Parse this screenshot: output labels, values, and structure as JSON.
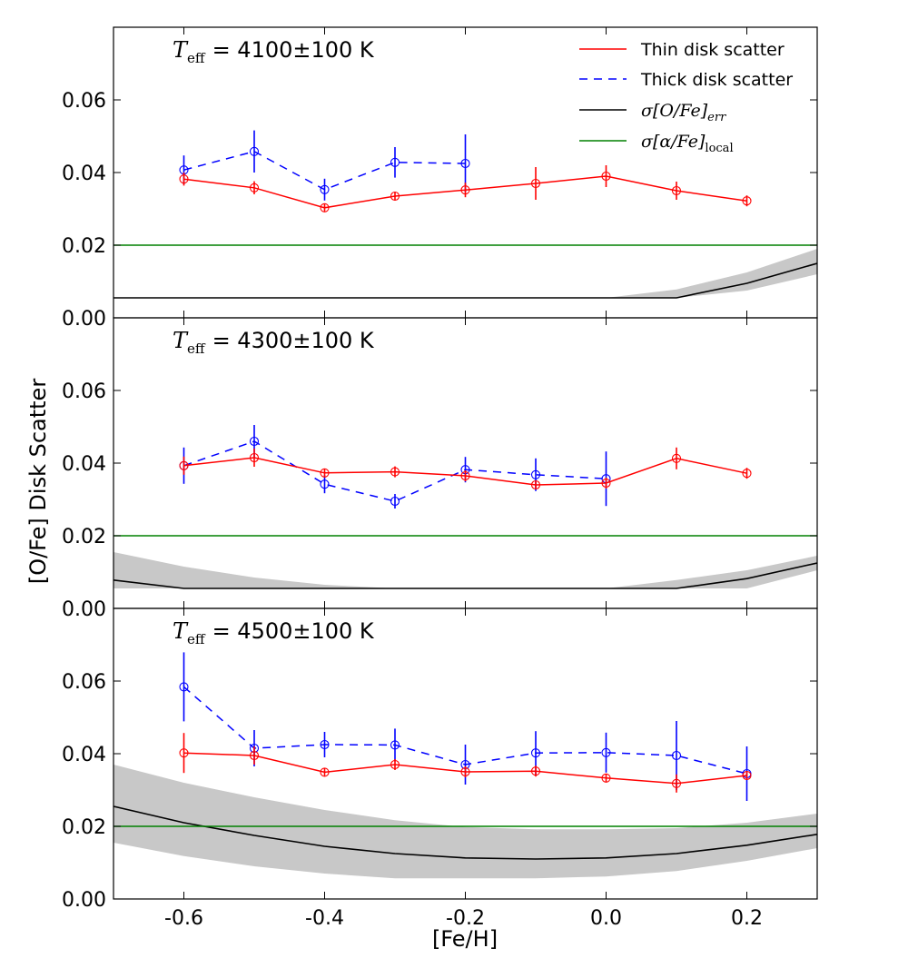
{
  "chart_data": {
    "type": "line",
    "xlabel": "[Fe/H]",
    "ylabel": "[O/Fe] Disk Scatter",
    "xlim": [
      -0.7,
      0.3
    ],
    "ylim": [
      0.0,
      0.08
    ],
    "x_ticks": [
      "-0.6",
      "-0.4",
      "-0.2",
      "0.0",
      "0.2"
    ],
    "y_ticks": [
      "0.00",
      "0.02",
      "0.04",
      "0.06"
    ],
    "legend": {
      "placement": "top-right",
      "entries": [
        {
          "key": "thin",
          "label": "Thin disk scatter",
          "style": "solid",
          "color": "#ff0000"
        },
        {
          "key": "thick",
          "label": "Thick disk scatter",
          "style": "dashed",
          "color": "#0000ff"
        },
        {
          "key": "err",
          "label": "σ[O/Fe]",
          "sub": "err",
          "style": "solid",
          "color": "#000000"
        },
        {
          "key": "local",
          "label": "σ[α/Fe]",
          "sub": "local",
          "style": "solid",
          "color": "#008000"
        }
      ]
    },
    "colors": {
      "thin": "#ff0000",
      "thick": "#0000ff",
      "err": "#000000",
      "local": "#008000",
      "band": "#c8c8c8"
    },
    "panels": [
      {
        "title_prefix": "T",
        "title_sub": "eff",
        "title_value": "= 4100±100 K",
        "thin": {
          "x": [
            -0.6,
            -0.5,
            -0.4,
            -0.3,
            -0.2,
            -0.1,
            0.0,
            0.1,
            0.2
          ],
          "y": [
            0.0382,
            0.0358,
            0.0303,
            0.0335,
            0.0352,
            0.037,
            0.039,
            0.035,
            0.0322
          ],
          "err": [
            0.0018,
            0.0018,
            0.001,
            0.0012,
            0.002,
            0.0045,
            0.003,
            0.0025,
            0.0015
          ]
        },
        "thick": {
          "x": [
            -0.6,
            -0.5,
            -0.4,
            -0.3,
            -0.2
          ],
          "y": [
            0.0407,
            0.0458,
            0.0353,
            0.0428,
            0.0425
          ],
          "err": [
            0.004,
            0.0058,
            0.003,
            0.0042,
            0.008
          ]
        },
        "err_curve": {
          "x": [
            -0.7,
            -0.6,
            -0.5,
            -0.4,
            -0.3,
            -0.2,
            -0.1,
            0.0,
            0.1,
            0.2,
            0.3
          ],
          "y": [
            0.0055,
            0.0055,
            0.0055,
            0.0055,
            0.0055,
            0.0055,
            0.0055,
            0.0055,
            0.0055,
            0.0095,
            0.015
          ],
          "lo": [
            0.0055,
            0.0055,
            0.0055,
            0.0055,
            0.0055,
            0.0055,
            0.0055,
            0.0055,
            0.0055,
            0.0075,
            0.012
          ],
          "hi": [
            0.0055,
            0.0055,
            0.0055,
            0.0055,
            0.0055,
            0.0055,
            0.0055,
            0.0055,
            0.0078,
            0.0125,
            0.019
          ]
        },
        "local_level": 0.02
      },
      {
        "title_prefix": "T",
        "title_sub": "eff",
        "title_value": "= 4300±100 K",
        "thin": {
          "x": [
            -0.6,
            -0.5,
            -0.4,
            -0.3,
            -0.2,
            -0.1,
            0.0,
            0.1,
            0.2
          ],
          "y": [
            0.0393,
            0.0415,
            0.0373,
            0.0376,
            0.0365,
            0.034,
            0.0345,
            0.0413,
            0.0372
          ],
          "err": [
            0.0025,
            0.0025,
            0.0012,
            0.0015,
            0.0015,
            0.0012,
            0.0015,
            0.003,
            0.0015
          ]
        },
        "thick": {
          "x": [
            -0.6,
            -0.5,
            -0.4,
            -0.3,
            -0.2,
            -0.1,
            0.0
          ],
          "y": [
            0.0393,
            0.046,
            0.0342,
            0.0295,
            0.0382,
            0.0368,
            0.0357
          ],
          "err": [
            0.005,
            0.0045,
            0.0025,
            0.002,
            0.0035,
            0.0045,
            0.0075
          ]
        },
        "err_curve": {
          "x": [
            -0.7,
            -0.6,
            -0.5,
            -0.4,
            -0.3,
            -0.2,
            -0.1,
            0.0,
            0.1,
            0.2,
            0.3
          ],
          "y": [
            0.0078,
            0.0055,
            0.0055,
            0.0055,
            0.0055,
            0.0055,
            0.0055,
            0.0055,
            0.0055,
            0.0082,
            0.0125
          ],
          "lo": [
            0.0055,
            0.0055,
            0.0055,
            0.0055,
            0.0055,
            0.0055,
            0.0055,
            0.0055,
            0.0055,
            0.0055,
            0.0105
          ],
          "hi": [
            0.0155,
            0.0115,
            0.0085,
            0.0065,
            0.0055,
            0.0055,
            0.0055,
            0.0055,
            0.0078,
            0.0105,
            0.0145
          ]
        },
        "local_level": 0.02
      },
      {
        "title_prefix": "T",
        "title_sub": "eff",
        "title_value": "= 4500±100 K",
        "thin": {
          "x": [
            -0.6,
            -0.5,
            -0.4,
            -0.3,
            -0.2,
            -0.1,
            0.0,
            0.1,
            0.2
          ],
          "y": [
            0.0402,
            0.0395,
            0.0349,
            0.037,
            0.035,
            0.0352,
            0.0333,
            0.0318,
            0.034
          ],
          "err": [
            0.0055,
            0.0025,
            0.001,
            0.0015,
            0.0015,
            0.0015,
            0.0012,
            0.0025,
            0.001
          ]
        },
        "thick": {
          "x": [
            -0.6,
            -0.5,
            -0.4,
            -0.3,
            -0.2,
            -0.1,
            0.0,
            0.1,
            0.2
          ],
          "y": [
            0.0584,
            0.0415,
            0.0425,
            0.0424,
            0.037,
            0.0402,
            0.0403,
            0.0395,
            0.0345
          ],
          "err": [
            0.0095,
            0.005,
            0.0035,
            0.0045,
            0.0055,
            0.006,
            0.0055,
            0.0095,
            0.0075
          ]
        },
        "err_curve": {
          "x": [
            -0.7,
            -0.6,
            -0.5,
            -0.4,
            -0.3,
            -0.2,
            -0.1,
            0.0,
            0.1,
            0.2,
            0.3
          ],
          "y": [
            0.0255,
            0.021,
            0.0175,
            0.0145,
            0.0125,
            0.0113,
            0.011,
            0.0113,
            0.0125,
            0.0148,
            0.0178
          ],
          "lo": [
            0.0155,
            0.0118,
            0.009,
            0.007,
            0.0057,
            0.0057,
            0.0057,
            0.0062,
            0.0077,
            0.0105,
            0.014
          ],
          "hi": [
            0.037,
            0.032,
            0.028,
            0.0245,
            0.0217,
            0.0198,
            0.0192,
            0.0192,
            0.0195,
            0.021,
            0.0235
          ]
        },
        "local_level": 0.02
      }
    ]
  }
}
